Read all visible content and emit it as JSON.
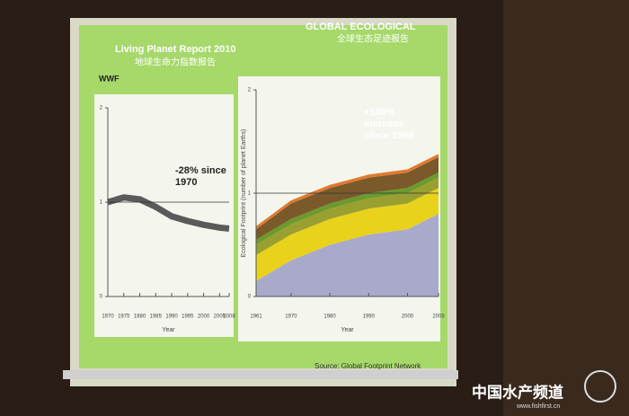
{
  "slide": {
    "logo": "WWF",
    "title": "Living Planet Report 2010",
    "title_cn": "地球生命力指数报告",
    "heading": "GLOBAL ECOLOGICAL",
    "heading_cn": "全球生态足迹报告",
    "source": "Source: Global Footprint Network"
  },
  "watermark": {
    "name": "中国水产频道",
    "url": "www.fishfirst.cn"
  },
  "chart_data": [
    {
      "type": "line",
      "x": [
        1970,
        1975,
        1980,
        1985,
        1990,
        1995,
        2000,
        2005,
        2008
      ],
      "values": [
        1.0,
        1.05,
        1.03,
        0.95,
        0.85,
        0.8,
        0.76,
        0.73,
        0.72
      ],
      "color": "#5a5a5a",
      "xlim": [
        1970,
        2008
      ],
      "xticks": [
        1970,
        1975,
        1980,
        1985,
        1990,
        1995,
        2000,
        2005,
        2008
      ],
      "ylim": [
        0,
        2
      ],
      "yticks": [
        0,
        1,
        2
      ],
      "hline": 1,
      "xlabel": "Year",
      "annotation": "-28% since 1970"
    },
    {
      "type": "stacked-area",
      "x": [
        1961,
        1970,
        1980,
        1990,
        2000,
        2008
      ],
      "series": [
        {
          "color": "#a9a9cc",
          "values": [
            0.15,
            0.35,
            0.5,
            0.6,
            0.65,
            0.8
          ]
        },
        {
          "color": "#e8d21c",
          "values": [
            0.25,
            0.25,
            0.25,
            0.25,
            0.25,
            0.25
          ]
        },
        {
          "color": "#9aa030",
          "values": [
            0.1,
            0.1,
            0.1,
            0.1,
            0.1,
            0.1
          ]
        },
        {
          "color": "#6c9a2c",
          "values": [
            0.05,
            0.05,
            0.05,
            0.05,
            0.05,
            0.05
          ]
        },
        {
          "color": "#7a5a2a",
          "values": [
            0.1,
            0.15,
            0.15,
            0.15,
            0.15,
            0.15
          ]
        },
        {
          "color": "#e07a30",
          "values": [
            0.03,
            0.03,
            0.03,
            0.03,
            0.03,
            0.03
          ]
        }
      ],
      "xlim": [
        1961,
        2008
      ],
      "xticks": [
        1961,
        1970,
        1980,
        1990,
        2000,
        2008
      ],
      "ylim": [
        0,
        2
      ],
      "yticks": [
        0,
        1,
        2
      ],
      "hline": 1,
      "xlabel": "Year",
      "ylabel": "Ecological Footprint (number of planet Earths)",
      "annotation": "+100% increase since 1966"
    }
  ]
}
